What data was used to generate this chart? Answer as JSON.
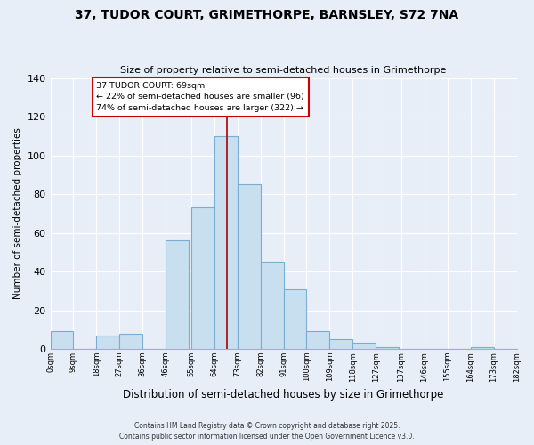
{
  "title": "37, TUDOR COURT, GRIMETHORPE, BARNSLEY, S72 7NA",
  "subtitle": "Size of property relative to semi-detached houses in Grimethorpe",
  "xlabel": "Distribution of semi-detached houses by size in Grimethorpe",
  "ylabel": "Number of semi-detached properties",
  "bin_starts": [
    0,
    9,
    18,
    27,
    36,
    45,
    55,
    64,
    73,
    82,
    91,
    100,
    109,
    118,
    127,
    137,
    146,
    155,
    164,
    173
  ],
  "bin_width": 9,
  "bin_labels": [
    "0sqm",
    "9sqm",
    "18sqm",
    "27sqm",
    "36sqm",
    "46sqm",
    "55sqm",
    "64sqm",
    "73sqm",
    "82sqm",
    "91sqm",
    "100sqm",
    "109sqm",
    "118sqm",
    "127sqm",
    "137sqm",
    "146sqm",
    "155sqm",
    "164sqm",
    "173sqm",
    "182sqm"
  ],
  "counts": [
    9,
    0,
    7,
    8,
    0,
    56,
    73,
    110,
    85,
    45,
    31,
    9,
    5,
    3,
    1,
    0,
    0,
    0,
    1,
    0
  ],
  "bar_color": "#c8dff0",
  "bar_edge_color": "#7aaed0",
  "ylim": [
    0,
    140
  ],
  "yticks": [
    0,
    20,
    40,
    60,
    80,
    100,
    120,
    140
  ],
  "property_size": 69,
  "vline_color": "#aa0000",
  "annotation_title": "37 TUDOR COURT: 69sqm",
  "annotation_line1": "← 22% of semi-detached houses are smaller (96)",
  "annotation_line2": "74% of semi-detached houses are larger (322) →",
  "footnote1": "Contains HM Land Registry data © Crown copyright and database right 2025.",
  "footnote2": "Contains public sector information licensed under the Open Government Licence v3.0.",
  "background_color": "#e8eef8",
  "grid_color": "#ffffff",
  "spine_color": "#aaaacc"
}
